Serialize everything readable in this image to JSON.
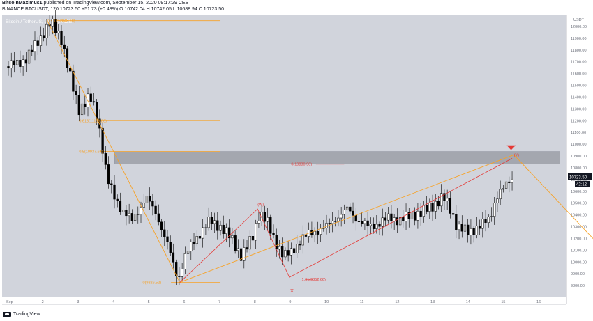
{
  "header": {
    "author": "BitcoinMaximus1",
    "published": "published on TradingView.com, September 15, 2020 09:17:29 CEST",
    "symbol_line": "BINANCE:BTCUSDT, 120",
    "price": "10723.50",
    "change": "+51.73 (+0.48%)",
    "ohlc": "O:10742.04 H:10742.05 L:10688.94 C:10723.50"
  },
  "footer": {
    "brand": "TradingView"
  },
  "colors": {
    "plot_bg": "#d1d4dc",
    "candle": "#000000",
    "orange": "#f7a227",
    "red": "#e53935",
    "resistance_box": "#9598a1",
    "price_label": "#131722"
  },
  "chart_data": {
    "type": "candlestick",
    "title": "Bitcoin / TetherUS, 2h, BINANCE",
    "ylabel": "USDT",
    "ylim": [
      9700,
      12100
    ],
    "y_ticks": [
      9800,
      9900,
      10000,
      10100,
      10200,
      10300,
      10400,
      10500,
      10600,
      10700,
      10800,
      10900,
      11000,
      11100,
      11200,
      11300,
      11400,
      11500,
      11600,
      11700,
      11800,
      11900,
      12000
    ],
    "x_ticks": [
      "Sep",
      "2",
      "3",
      "4",
      "5",
      "6",
      "7",
      "8",
      "9",
      "10",
      "11",
      "12",
      "13",
      "14",
      "15",
      "16"
    ],
    "last_price": "10723.50",
    "countdown": "42:12",
    "close_path": [
      [
        1,
        11660
      ],
      [
        1.5,
        11720
      ],
      [
        2,
        11950
      ],
      [
        2.2,
        12030
      ],
      [
        2.5,
        11900
      ],
      [
        2.8,
        11500
      ],
      [
        3,
        11300
      ],
      [
        3.3,
        11400
      ],
      [
        3.5,
        11250
      ],
      [
        3.6,
        11100
      ],
      [
        3.8,
        10700
      ],
      [
        4,
        10550
      ],
      [
        4.2,
        10450
      ],
      [
        4.5,
        10350
      ],
      [
        4.9,
        10550
      ],
      [
        5.2,
        10400
      ],
      [
        5.5,
        10150
      ],
      [
        5.8,
        9850
      ],
      [
        6,
        10050
      ],
      [
        6.3,
        10200
      ],
      [
        6.7,
        10350
      ],
      [
        7,
        10300
      ],
      [
        7.3,
        10200
      ],
      [
        7.6,
        10050
      ],
      [
        7.9,
        10200
      ],
      [
        8.1,
        10420
      ],
      [
        8.3,
        10350
      ],
      [
        8.5,
        10200
      ],
      [
        8.8,
        10050
      ],
      [
        9,
        10080
      ],
      [
        9.3,
        10200
      ],
      [
        9.6,
        10250
      ],
      [
        10,
        10300
      ],
      [
        10.3,
        10380
      ],
      [
        10.6,
        10450
      ],
      [
        10.9,
        10350
      ],
      [
        11.2,
        10300
      ],
      [
        11.5,
        10330
      ],
      [
        11.8,
        10380
      ],
      [
        12.1,
        10350
      ],
      [
        12.4,
        10400
      ],
      [
        12.7,
        10420
      ],
      [
        13,
        10480
      ],
      [
        13.3,
        10550
      ],
      [
        13.5,
        10450
      ],
      [
        13.7,
        10300
      ],
      [
        14,
        10250
      ],
      [
        14.3,
        10300
      ],
      [
        14.6,
        10360
      ],
      [
        14.8,
        10550
      ],
      [
        15,
        10620
      ],
      [
        15.2,
        10700
      ],
      [
        15.3,
        10723
      ]
    ],
    "annotations": [
      {
        "label": "0",
        "x": 2.1,
        "y": 12045,
        "color": "#f7a227"
      },
      {
        "label": "0(12048.78)",
        "x": 2.3,
        "y": 12048.78,
        "color": "#f7a227"
      },
      {
        "label": "0.618(11199.86)",
        "x": 3.0,
        "y": 11199.86,
        "color": "#f7a227"
      },
      {
        "label": "0.5(10937.64)",
        "x": 3.0,
        "y": 10937.64,
        "color": "#f7a227"
      },
      {
        "label": "0(9826.52)",
        "x": 4.8,
        "y": 9826.52,
        "color": "#f7a227"
      },
      {
        "label": "0(10830.96)",
        "x": 9.0,
        "y": 10830.96,
        "color": "#e53935"
      },
      {
        "label": "1.61(9852.66)",
        "x": 9.3,
        "y": 9852.66,
        "color": "#e53935"
      },
      {
        "label": "(W)",
        "x": 8.05,
        "y": 10490,
        "color": "#e53935"
      },
      {
        "label": "(X)",
        "x": 8.95,
        "y": 9760,
        "color": "#e53935"
      },
      {
        "label": "(Y)",
        "x": 15.3,
        "y": 10910,
        "color": "#e53935"
      }
    ],
    "resistance_zone": [
      10830.96,
      10937.64
    ]
  }
}
